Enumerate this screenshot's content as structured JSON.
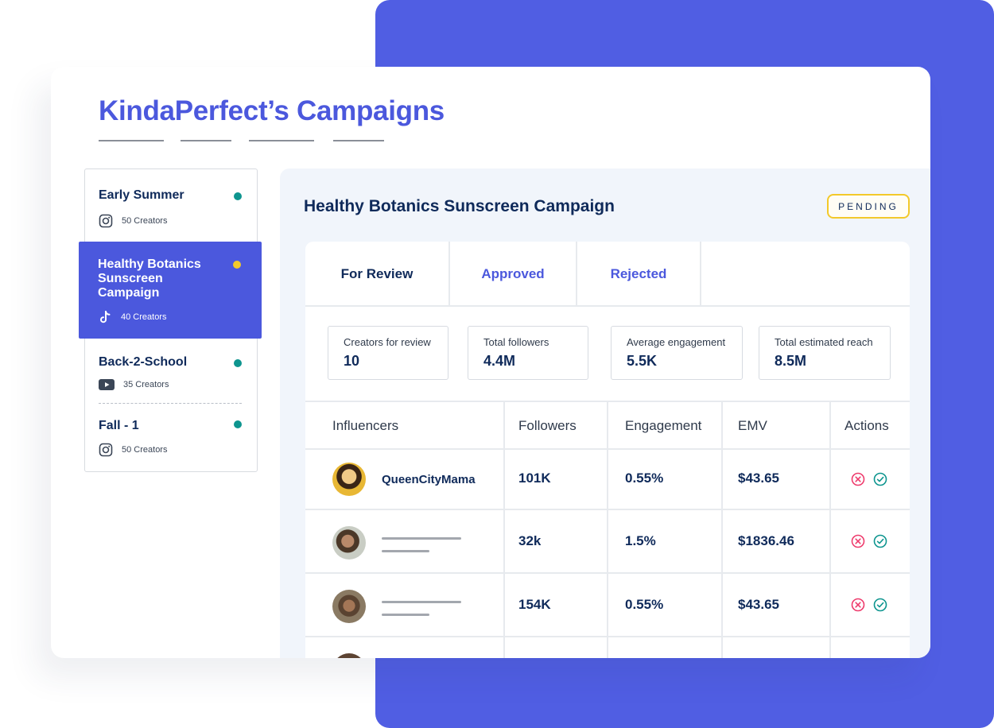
{
  "page": {
    "title": "KindaPerfect’s Campaigns"
  },
  "colors": {
    "brand": "#4b58dd",
    "background_block": "#505ee3",
    "navy": "#0f2a5a",
    "active_dot_teal": "#0e958f",
    "pending_yellow": "#f3c92a",
    "reject_pink": "#ee3c6d",
    "approve_teal": "#0e958f"
  },
  "sidebar": {
    "campaigns": [
      {
        "name": "Early Summer",
        "platform_icon": "instagram-icon",
        "creators": "50 Creators",
        "status_color": "#0e958f"
      },
      {
        "name": "Healthy Botanics Sunscreen Campaign",
        "platform_icon": "tiktok-icon",
        "creators": "40 Creators",
        "status_color": "#f3c92a",
        "selected": true
      },
      {
        "name": "Back-2-School",
        "platform_icon": "youtube-icon",
        "creators": "35 Creators",
        "status_color": "#0e958f"
      },
      {
        "name": "Fall - 1",
        "platform_icon": "instagram-icon",
        "creators": "50 Creators",
        "status_color": "#0e958f"
      }
    ]
  },
  "campaign": {
    "title": "Healthy Botanics Sunscreen Campaign",
    "status": "PENDING",
    "tabs": [
      {
        "label": "For Review",
        "active": true
      },
      {
        "label": "Approved"
      },
      {
        "label": "Rejected"
      }
    ],
    "stats": [
      {
        "label": "Creators for review",
        "value": "10"
      },
      {
        "label": "Total followers",
        "value": "4.4M"
      },
      {
        "label": "Average engagement",
        "value": "5.5K"
      },
      {
        "label": "Total estimated reach",
        "value": "8.5M"
      }
    ],
    "table": {
      "columns": [
        "Influencers",
        "Followers",
        "Engagement",
        "EMV",
        "Actions"
      ],
      "rows": [
        {
          "influencer": "QueenCityMama",
          "followers": "101K",
          "engagement": "0.55%",
          "emv": "$43.65"
        },
        {
          "influencer": "",
          "followers": "32k",
          "engagement": "1.5%",
          "emv": "$1836.46"
        },
        {
          "influencer": "",
          "followers": "154K",
          "engagement": "0.55%",
          "emv": "$43.65"
        }
      ]
    }
  }
}
